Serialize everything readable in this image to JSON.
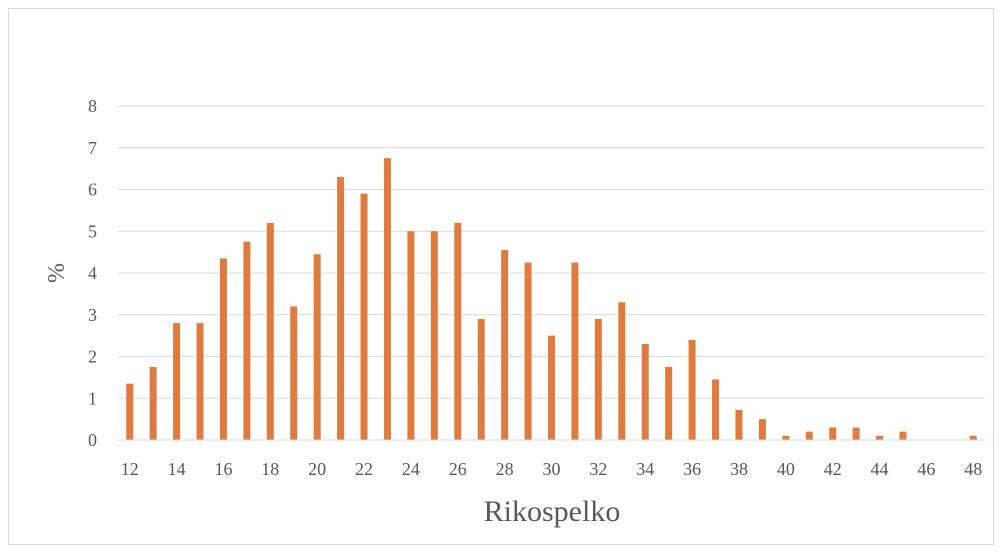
{
  "chart_data": {
    "type": "bar",
    "title": "",
    "xlabel": "Rikospelko",
    "ylabel": "%",
    "ylim": [
      0,
      8
    ],
    "yticks": [
      0,
      1,
      2,
      3,
      4,
      5,
      6,
      7,
      8
    ],
    "xtick_labels": [
      12,
      14,
      16,
      18,
      20,
      22,
      24,
      26,
      28,
      30,
      32,
      34,
      36,
      38,
      40,
      42,
      44,
      46,
      48
    ],
    "grid": true,
    "legend": "none",
    "color": "#E07B3F",
    "categories": [
      12,
      13,
      14,
      15,
      16,
      17,
      18,
      19,
      20,
      21,
      22,
      23,
      24,
      25,
      26,
      27,
      28,
      29,
      30,
      31,
      32,
      33,
      34,
      35,
      36,
      37,
      38,
      39,
      40,
      41,
      42,
      43,
      44,
      45,
      46,
      47,
      48
    ],
    "values": [
      1.35,
      1.75,
      2.8,
      2.8,
      4.35,
      4.75,
      5.2,
      3.2,
      4.45,
      6.3,
      5.9,
      6.75,
      5.0,
      5.0,
      5.2,
      2.9,
      4.55,
      4.25,
      2.5,
      4.25,
      2.9,
      3.3,
      2.3,
      1.75,
      2.4,
      1.45,
      0.72,
      0.5,
      0.1,
      0.2,
      0.3,
      0.3,
      0.1,
      0.2,
      0.0,
      0.0,
      0.1
    ]
  }
}
